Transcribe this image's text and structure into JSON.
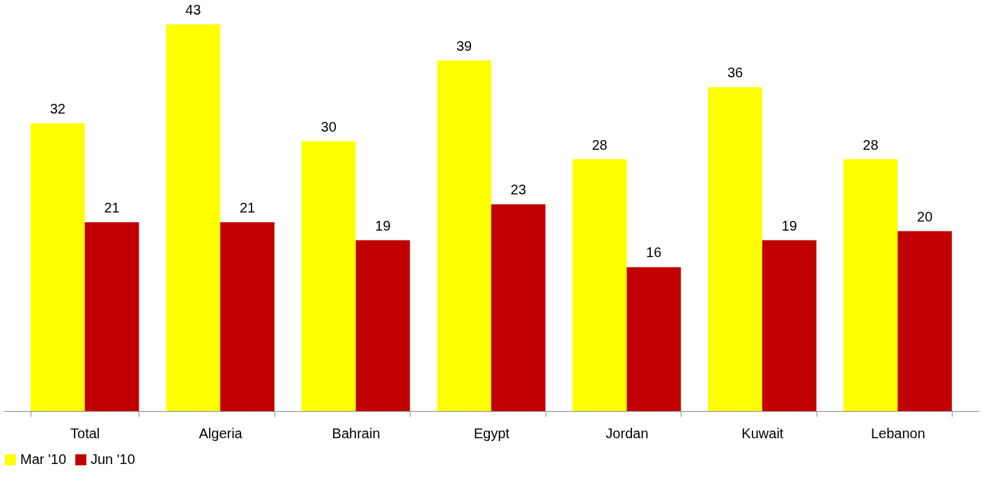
{
  "chart_data": {
    "type": "bar",
    "categories": [
      "Total",
      "Algeria",
      "Bahrain",
      "Egypt",
      "Jordan",
      "Kuwait",
      "Lebanon"
    ],
    "series": [
      {
        "name": "Mar '10",
        "color": "#ffff00",
        "values": [
          32,
          43,
          30,
          39,
          28,
          36,
          28
        ]
      },
      {
        "name": "Jun '10",
        "color": "#c00000",
        "values": [
          21,
          21,
          19,
          23,
          16,
          19,
          20
        ]
      }
    ],
    "data_labels": true,
    "legend": "bottom",
    "grid": false,
    "tick_labels": "x"
  }
}
